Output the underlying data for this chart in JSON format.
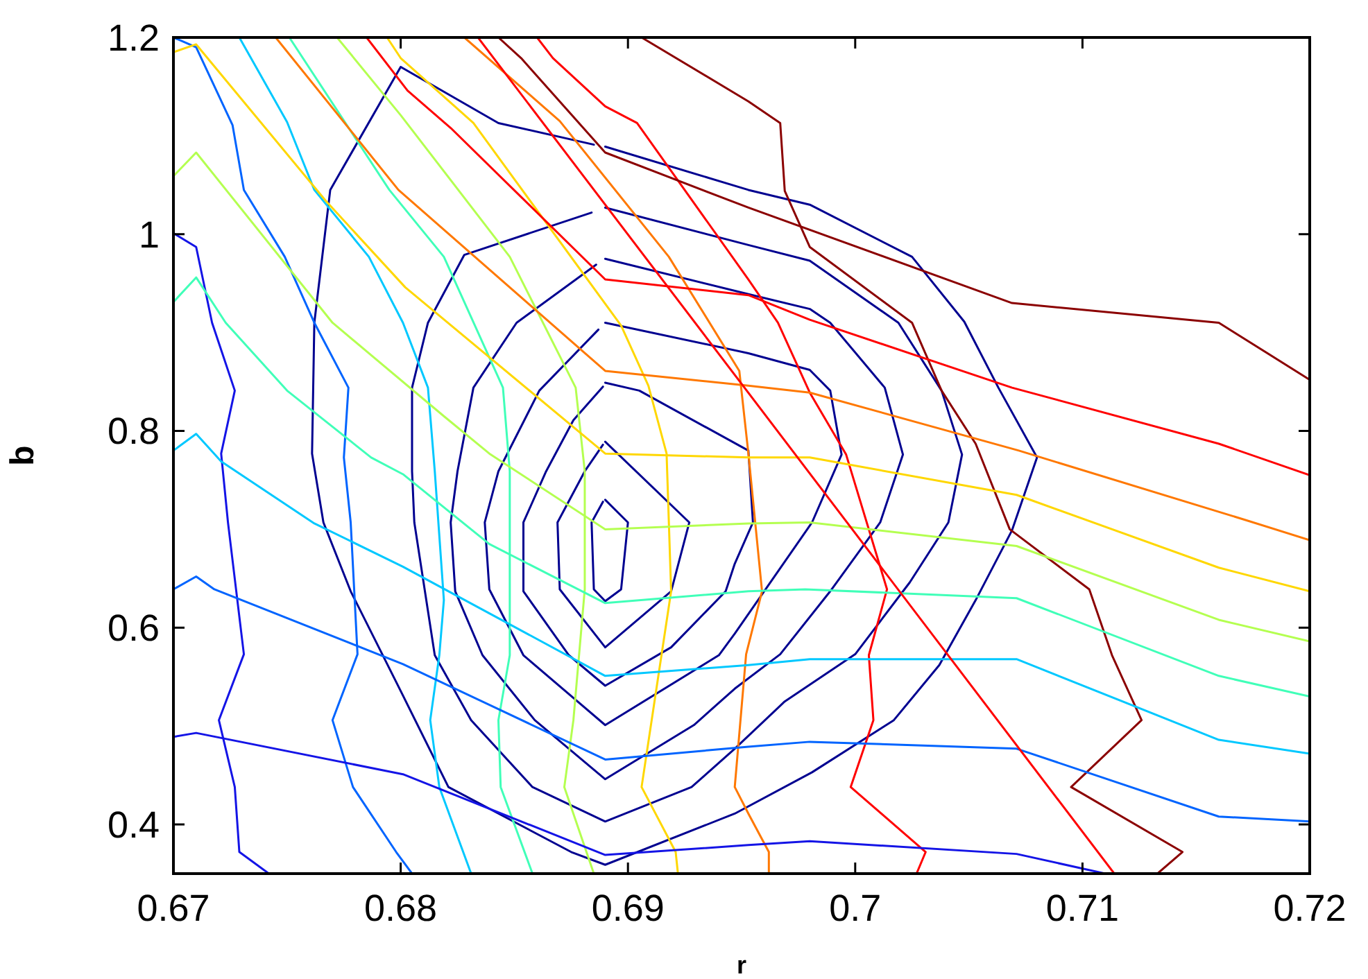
{
  "chart_data": {
    "type": "line",
    "xlabel": "r",
    "ylabel": "b",
    "xlim": [
      0.67,
      0.72
    ],
    "ylim": [
      0.35,
      1.2
    ],
    "xticks": [
      0.67,
      0.68,
      0.69,
      0.7,
      0.71,
      0.72
    ],
    "yticks": [
      0.4,
      0.6,
      0.8,
      1,
      1.2
    ],
    "series": [
      {
        "color": "#000090",
        "x": [
          0.689,
          0.69,
          0.6897,
          0.689,
          0.6885,
          0.6884,
          0.6889
        ],
        "values": [
          0.73,
          0.707,
          0.639,
          0.627,
          0.639,
          0.707,
          0.728
        ]
      },
      {
        "color": "#000090",
        "x": [
          0.689,
          0.6927,
          0.6919,
          0.689,
          0.687,
          0.6869,
          0.6881,
          0.6889
        ],
        "values": [
          0.789,
          0.707,
          0.637,
          0.58,
          0.639,
          0.707,
          0.759,
          0.786
        ]
      },
      {
        "color": "#000090",
        "x": [
          0.689,
          0.6905,
          0.6953,
          0.6955,
          0.6947,
          0.6943,
          0.6919,
          0.689,
          0.6874,
          0.6854,
          0.6854,
          0.6864,
          0.6876,
          0.6889
        ],
        "values": [
          0.849,
          0.841,
          0.78,
          0.707,
          0.665,
          0.637,
          0.58,
          0.541,
          0.572,
          0.637,
          0.707,
          0.759,
          0.811,
          0.845
        ]
      },
      {
        "color": "#000090",
        "x": [
          0.689,
          0.6953,
          0.698,
          0.6989,
          0.6994,
          0.6981,
          0.6947,
          0.694,
          0.689,
          0.6854,
          0.6839,
          0.6837,
          0.6843,
          0.6861,
          0.6887
        ],
        "values": [
          0.91,
          0.879,
          0.862,
          0.841,
          0.776,
          0.707,
          0.594,
          0.572,
          0.501,
          0.572,
          0.639,
          0.707,
          0.759,
          0.841,
          0.903
        ]
      },
      {
        "color": "#000090",
        "x": [
          0.689,
          0.6953,
          0.698,
          0.6989,
          0.7013,
          0.7021,
          0.7011,
          0.6989,
          0.6967,
          0.6947,
          0.6929,
          0.689,
          0.6859,
          0.6836,
          0.6824,
          0.6822,
          0.6825,
          0.6832,
          0.6851,
          0.6886
        ],
        "values": [
          0.975,
          0.939,
          0.924,
          0.91,
          0.844,
          0.776,
          0.707,
          0.637,
          0.573,
          0.538,
          0.501,
          0.446,
          0.506,
          0.572,
          0.637,
          0.707,
          0.759,
          0.844,
          0.91,
          0.969
        ]
      },
      {
        "color": "#000090",
        "x": [
          0.689,
          0.6953,
          0.698,
          0.7019,
          0.7038,
          0.7047,
          0.7041,
          0.7024,
          0.7,
          0.6969,
          0.6947,
          0.6928,
          0.689,
          0.6858,
          0.6831,
          0.6815,
          0.6806,
          0.6805,
          0.6805,
          0.6812,
          0.6828,
          0.6884
        ],
        "values": [
          1.027,
          0.989,
          0.973,
          0.91,
          0.841,
          0.776,
          0.707,
          0.646,
          0.573,
          0.525,
          0.477,
          0.438,
          0.403,
          0.438,
          0.506,
          0.572,
          0.707,
          0.759,
          0.844,
          0.91,
          0.979,
          1.022
        ]
      },
      {
        "color": "#000090",
        "x": [
          0.689,
          0.6953,
          0.698,
          0.7025,
          0.7048,
          0.7063,
          0.708,
          0.7069,
          0.7053,
          0.7037,
          0.7017,
          0.6981,
          0.6947,
          0.689,
          0.6875,
          0.6821,
          0.6801,
          0.6778,
          0.6766,
          0.6761,
          0.6762,
          0.6769,
          0.68,
          0.6843,
          0.6885
        ],
        "values": [
          1.089,
          1.045,
          1.03,
          0.977,
          0.911,
          0.844,
          0.773,
          0.699,
          0.628,
          0.562,
          0.506,
          0.453,
          0.411,
          0.359,
          0.372,
          0.438,
          0.531,
          0.637,
          0.707,
          0.777,
          0.91,
          1.045,
          1.17,
          1.113,
          1.091
        ]
      },
      {
        "color": "#1414e6",
        "x": [
          0.67,
          0.671,
          0.6717,
          0.6727,
          0.6721,
          0.6724,
          0.6731,
          0.672,
          0.6727,
          0.6729,
          0.6742
        ],
        "values": [
          1.001,
          0.987,
          0.91,
          0.841,
          0.777,
          0.707,
          0.573,
          0.506,
          0.438,
          0.372,
          0.35
        ]
      },
      {
        "color": "#0064ff",
        "x": [
          0.67,
          0.671,
          0.6726,
          0.6731,
          0.6749,
          0.6762,
          0.6777,
          0.6775,
          0.6778,
          0.6781,
          0.677,
          0.6779,
          0.6798,
          0.6805
        ],
        "values": [
          1.2,
          1.19,
          1.111,
          1.045,
          0.977,
          0.91,
          0.844,
          0.773,
          0.707,
          0.573,
          0.506,
          0.438,
          0.372,
          0.35
        ]
      },
      {
        "color": "#00c8ff",
        "x": [
          0.6729,
          0.675,
          0.6762,
          0.6786,
          0.6801,
          0.6812,
          0.6815,
          0.6819,
          0.6817,
          0.6813,
          0.6817,
          0.6831
        ],
        "values": [
          1.2,
          1.114,
          1.045,
          0.977,
          0.91,
          0.844,
          0.759,
          0.628,
          0.572,
          0.506,
          0.438,
          0.35
        ]
      },
      {
        "color": "#40ffb8",
        "x": [
          0.6751,
          0.6795,
          0.6819,
          0.6845,
          0.6848,
          0.6848,
          0.6843,
          0.6844,
          0.6858
        ],
        "values": [
          1.2,
          1.045,
          0.977,
          0.844,
          0.759,
          0.572,
          0.506,
          0.438,
          0.35
        ]
      },
      {
        "color": "#b4ff50",
        "x": [
          0.6772,
          0.68,
          0.6848,
          0.6877,
          0.6881,
          0.6881,
          0.6876,
          0.6872,
          0.6885
        ],
        "values": [
          1.2,
          1.121,
          0.977,
          0.844,
          0.759,
          0.639,
          0.506,
          0.438,
          0.35
        ]
      },
      {
        "color": "#ffd700",
        "x": [
          0.6794,
          0.68,
          0.6832,
          0.6897,
          0.6909,
          0.6917,
          0.6919,
          0.6906,
          0.6921,
          0.6922
        ],
        "values": [
          1.2,
          1.179,
          1.113,
          0.907,
          0.846,
          0.777,
          0.637,
          0.438,
          0.372,
          0.35
        ]
      },
      {
        "color": "#ff7800",
        "x": [
          0.6828,
          0.687,
          0.6918,
          0.6949,
          0.6953,
          0.6959,
          0.6952,
          0.6947,
          0.6953,
          0.6962,
          0.6962
        ],
        "values": [
          1.2,
          1.115,
          0.977,
          0.861,
          0.777,
          0.637,
          0.573,
          0.438,
          0.411,
          0.372,
          0.35
        ]
      },
      {
        "color": "#ff0000",
        "x": [
          0.686,
          0.6867,
          0.689,
          0.6904,
          0.6953,
          0.6966,
          0.698,
          0.6996,
          0.7014,
          0.7006,
          0.7008,
          0.6998,
          0.7031,
          0.7027
        ],
        "values": [
          1.2,
          1.179,
          1.13,
          1.113,
          0.954,
          0.91,
          0.839,
          0.776,
          0.639,
          0.572,
          0.506,
          0.438,
          0.372,
          0.35
        ]
      },
      {
        "color": "#8b0000",
        "x": [
          0.6906,
          0.6953,
          0.6967,
          0.6969,
          0.698,
          0.7025,
          0.7038,
          0.7053,
          0.7068,
          0.7103,
          0.7113,
          0.7126,
          0.7095,
          0.7144,
          0.7133
        ],
        "values": [
          1.2,
          1.135,
          1.113,
          1.044,
          0.987,
          0.91,
          0.841,
          0.787,
          0.7,
          0.639,
          0.572,
          0.506,
          0.438,
          0.372,
          0.35
        ]
      },
      {
        "color": "#1414e6",
        "x": [
          0.67,
          0.671,
          0.6801,
          0.689,
          0.6953,
          0.698,
          0.7071,
          0.711
        ],
        "values": [
          0.489,
          0.493,
          0.451,
          0.369,
          0.379,
          0.383,
          0.37,
          0.35
        ]
      },
      {
        "color": "#0064ff",
        "x": [
          0.67,
          0.671,
          0.6718,
          0.6801,
          0.689,
          0.6953,
          0.698,
          0.7071,
          0.716,
          0.72
        ],
        "values": [
          0.639,
          0.652,
          0.639,
          0.563,
          0.466,
          0.479,
          0.484,
          0.477,
          0.408,
          0.403
        ]
      },
      {
        "color": "#00c8ff",
        "x": [
          0.67,
          0.671,
          0.6721,
          0.6762,
          0.6801,
          0.689,
          0.6953,
          0.698,
          0.7071,
          0.716,
          0.72
        ],
        "values": [
          0.78,
          0.797,
          0.769,
          0.706,
          0.662,
          0.551,
          0.562,
          0.568,
          0.568,
          0.486,
          0.472
        ]
      },
      {
        "color": "#40ffb8",
        "x": [
          0.67,
          0.671,
          0.6723,
          0.675,
          0.6787,
          0.6801,
          0.6839,
          0.689,
          0.6953,
          0.6978,
          0.7071,
          0.716,
          0.72
        ],
        "values": [
          0.931,
          0.956,
          0.91,
          0.841,
          0.773,
          0.756,
          0.685,
          0.625,
          0.637,
          0.639,
          0.63,
          0.551,
          0.53
        ]
      },
      {
        "color": "#b4ff50",
        "x": [
          0.67,
          0.671,
          0.677,
          0.6819,
          0.6839,
          0.689,
          0.6953,
          0.698,
          0.7071,
          0.716,
          0.72
        ],
        "values": [
          1.059,
          1.083,
          0.91,
          0.815,
          0.777,
          0.7,
          0.706,
          0.707,
          0.683,
          0.608,
          0.586
        ]
      },
      {
        "color": "#ffd700",
        "x": [
          0.67,
          0.671,
          0.6767,
          0.6802,
          0.689,
          0.6953,
          0.698,
          0.7071,
          0.716,
          0.72
        ],
        "values": [
          1.185,
          1.193,
          1.034,
          0.946,
          0.777,
          0.773,
          0.773,
          0.735,
          0.661,
          0.637
        ]
      },
      {
        "color": "#ff7800",
        "x": [
          0.6745,
          0.6799,
          0.689,
          0.6953,
          0.698,
          0.7072,
          0.7171,
          0.72
        ],
        "values": [
          1.2,
          1.045,
          0.861,
          0.846,
          0.839,
          0.78,
          0.71,
          0.689
        ]
      },
      {
        "color": "#ff0000",
        "x": [
          0.6785,
          0.6803,
          0.6822,
          0.689,
          0.6953,
          0.698,
          0.7069,
          0.716,
          0.72
        ],
        "values": [
          1.2,
          1.146,
          1.108,
          0.954,
          0.938,
          0.913,
          0.844,
          0.787,
          0.755
        ]
      },
      {
        "color": "#8b0000",
        "x": [
          0.6843,
          0.6853,
          0.689,
          0.6953,
          0.7069,
          0.716,
          0.72
        ],
        "values": [
          1.2,
          1.179,
          1.083,
          1.027,
          0.93,
          0.91,
          0.852
        ]
      },
      {
        "color": "#ff0000",
        "x": [
          0.6834,
          0.7114
        ],
        "values": [
          1.2,
          0.35
        ]
      }
    ]
  }
}
